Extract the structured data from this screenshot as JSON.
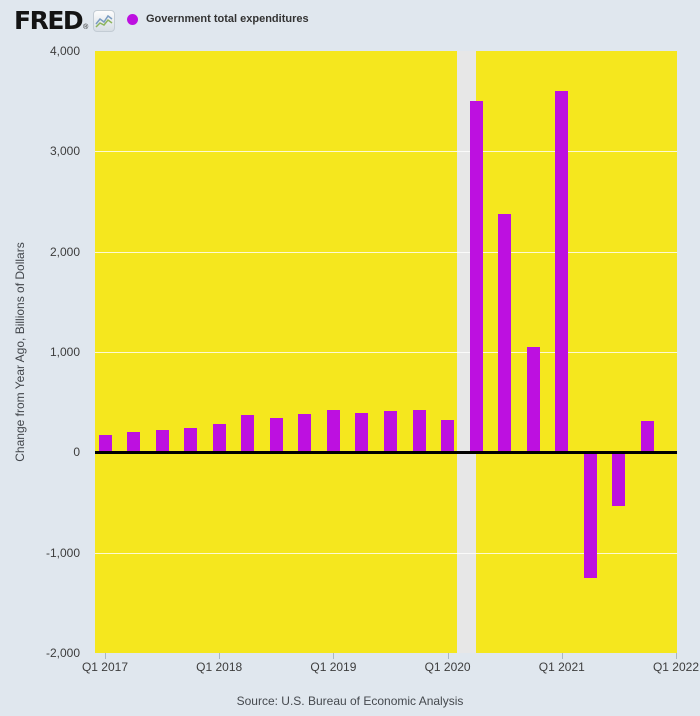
{
  "header": {
    "logo_text": "FRED",
    "registered": "®",
    "legend_label": "Government total expenditures"
  },
  "footer": {
    "source": "Source: U.S. Bureau of Economic Analysis"
  },
  "colors": {
    "page_bg": "#e0e7ee",
    "plot_bg": "#f5e71e",
    "bar": "#bd10e0",
    "recession_band": "#e7e7e7",
    "zero_line": "#000000",
    "gridline": "rgba(255,255,255,0.8)",
    "axis_text": "#3d3d3d"
  },
  "chart_data": {
    "type": "bar",
    "series_name": "Government total expenditures",
    "ylabel": "Change from Year Ago, Billions of Dollars",
    "categories": [
      "Q1 2017",
      "Q2 2017",
      "Q3 2017",
      "Q4 2017",
      "Q1 2018",
      "Q2 2018",
      "Q3 2018",
      "Q4 2018",
      "Q1 2019",
      "Q2 2019",
      "Q3 2019",
      "Q4 2019",
      "Q1 2020",
      "Q2 2020",
      "Q3 2020",
      "Q4 2020",
      "Q1 2021",
      "Q2 2021",
      "Q3 2021",
      "Q4 2021"
    ],
    "values": [
      170,
      200,
      225,
      240,
      280,
      370,
      345,
      380,
      425,
      390,
      410,
      420,
      320,
      3500,
      2380,
      1050,
      3600,
      -1250,
      -540,
      310
    ],
    "ylim": [
      -2000,
      4000
    ],
    "yticks": [
      {
        "value": 4000,
        "label": "4,000"
      },
      {
        "value": 3000,
        "label": "3,000"
      },
      {
        "value": 2000,
        "label": "2,000"
      },
      {
        "value": 1000,
        "label": "1,000"
      },
      {
        "value": 0,
        "label": "0"
      },
      {
        "value": -1000,
        "label": "-1,000"
      },
      {
        "value": -2000,
        "label": "-2,000"
      }
    ],
    "xticks": [
      "Q1 2017",
      "Q1 2018",
      "Q1 2019",
      "Q1 2020",
      "Q1 2021",
      "Q1 2022"
    ],
    "grid": true,
    "legend_position": "top-left",
    "recession_band": {
      "start": "2020-02",
      "end": "2020-04"
    }
  }
}
